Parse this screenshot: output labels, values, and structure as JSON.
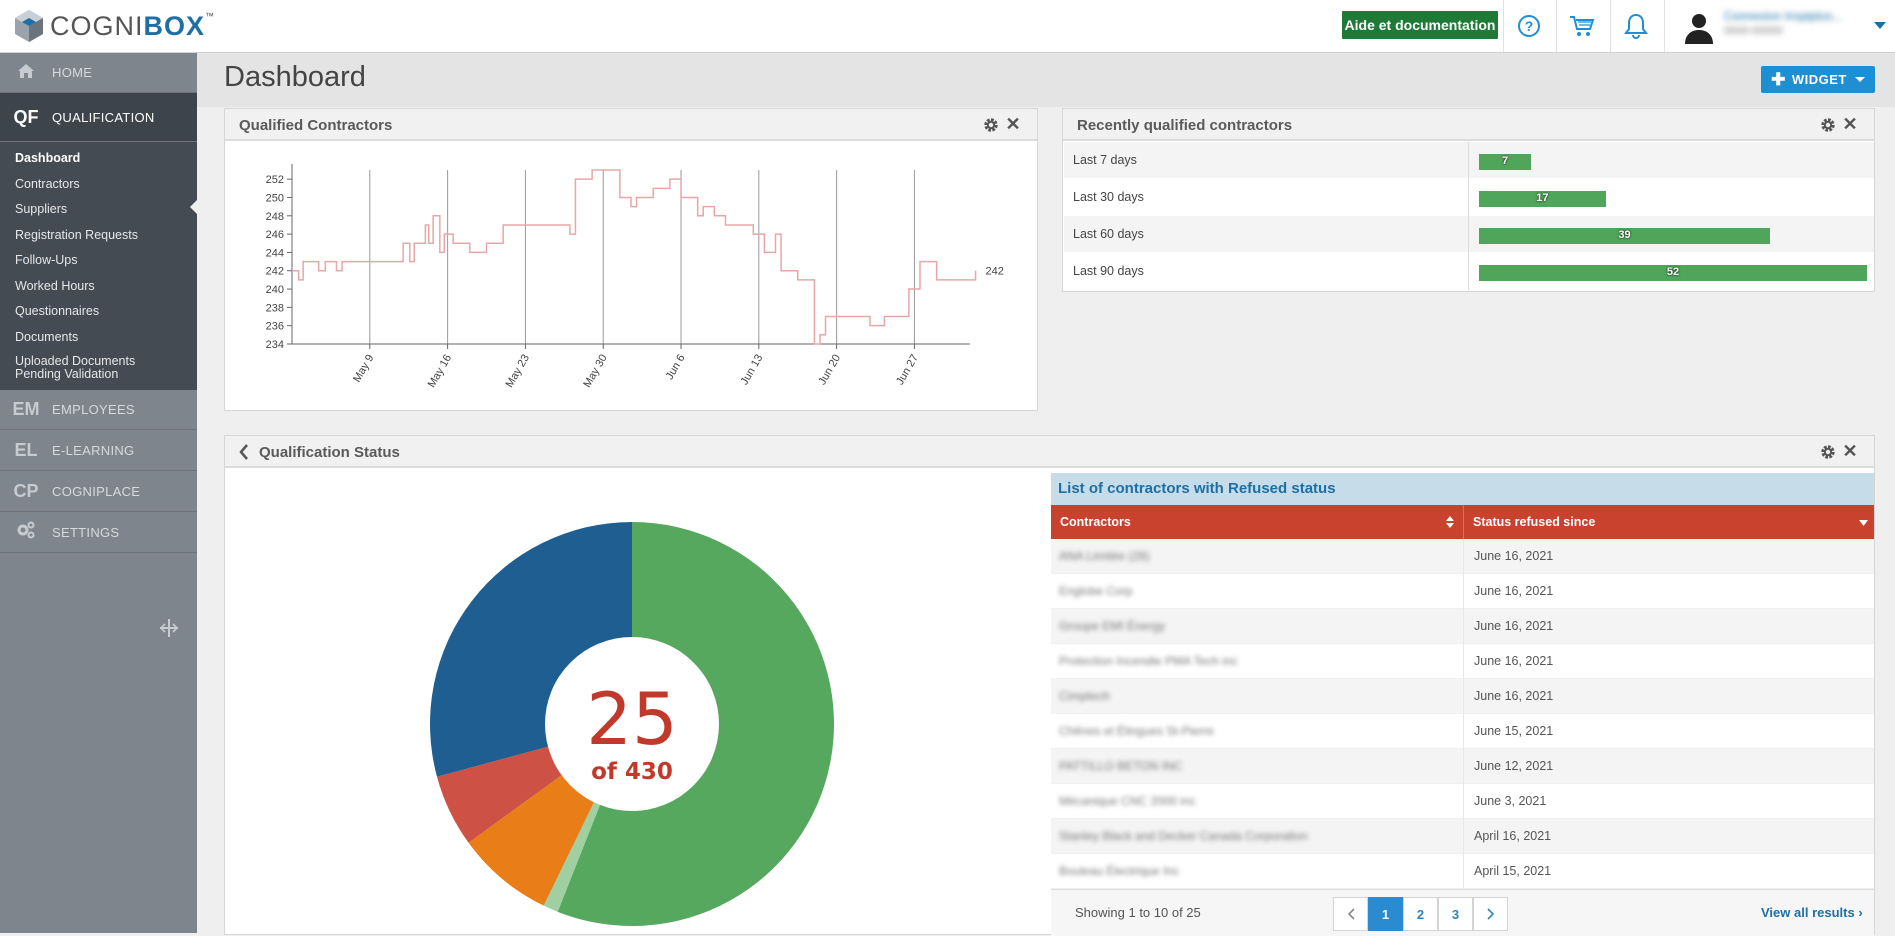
{
  "brand": {
    "logo_text_light": "COGNI",
    "logo_text_bold": "BOX",
    "logo_tm": "™"
  },
  "topbar": {
    "help_label": "Aide et documentation",
    "user_name": "Connexion Inspiplus...",
    "user_sub": "0000-00000"
  },
  "sidebar": {
    "main": [
      {
        "abbr": "",
        "label": "HOME"
      },
      {
        "abbr": "QF",
        "label": "QUALIFICATION"
      },
      {
        "abbr": "EM",
        "label": "EMPLOYEES"
      },
      {
        "abbr": "EL",
        "label": "E-LEARNING"
      },
      {
        "abbr": "CP",
        "label": "COGNIPLACE"
      },
      {
        "abbr": "",
        "label": "SETTINGS"
      }
    ],
    "sub": [
      "Dashboard",
      "Contractors",
      "Suppliers",
      "Registration Requests",
      "Follow-Ups",
      "Worked Hours",
      "Questionnaires",
      "Documents",
      "Uploaded Documents",
      "Pending Validation"
    ]
  },
  "page": {
    "title": "Dashboard",
    "widget_label": "WIDGET"
  },
  "qualified_contractors": {
    "title": "Qualified Contractors",
    "last_value_label": "242"
  },
  "recently_qualified": {
    "title": "Recently qualified contractors",
    "rows": [
      {
        "label": "Last 7 days",
        "value": 7
      },
      {
        "label": "Last 30 days",
        "value": 17
      },
      {
        "label": "Last 60 days",
        "value": 39
      },
      {
        "label": "Last 90 days",
        "value": 52
      }
    ]
  },
  "qualification_status": {
    "title": "Qualification Status",
    "center_big": "25",
    "center_small": "of 430",
    "list_title": "List of contractors with Refused status",
    "col_contractors": "Contractors",
    "col_since": "Status refused since",
    "rows": [
      {
        "name": "ANA Limitée (28)",
        "since": "June 16, 2021"
      },
      {
        "name": "Englobe Corp",
        "since": "June 16, 2021"
      },
      {
        "name": "Groupe EMI Énergy",
        "since": "June 16, 2021"
      },
      {
        "name": "Protection Incendie PMA Tech inc",
        "since": "June 16, 2021"
      },
      {
        "name": "Cimptech",
        "since": "June 16, 2021"
      },
      {
        "name": "Chênes et Élingues St-Pierre",
        "since": "June 15, 2021"
      },
      {
        "name": "PATTILLO BETON INC",
        "since": "June 12, 2021"
      },
      {
        "name": "Mécanique CNC 2000 inc",
        "since": "June 3, 2021"
      },
      {
        "name": "Stanley Black and Decker Canada Corporation",
        "since": "April 16, 2021"
      },
      {
        "name": "Bouleau Électrique Inc",
        "since": "April 15, 2021"
      }
    ],
    "showing": "Showing 1 to 10 of 25",
    "pages": [
      "1",
      "2",
      "3"
    ],
    "view_all": "View all results"
  },
  "chart_data": [
    {
      "type": "line",
      "title": "Qualified Contractors",
      "x_ticks": [
        "May 9",
        "May 16",
        "May 23",
        "May 30",
        "Jun 6",
        "Jun 13",
        "Jun 20",
        "Jun 27"
      ],
      "y_ticks": [
        234,
        236,
        238,
        240,
        242,
        244,
        246,
        248,
        250,
        252
      ],
      "ylim": [
        234,
        253
      ],
      "xlim_days": [
        0,
        61
      ],
      "series": [
        {
          "color": "#e8a7a7",
          "points": [
            [
              0,
              242
            ],
            [
              0.6,
              241
            ],
            [
              1,
              243
            ],
            [
              2,
              243
            ],
            [
              2.4,
              242
            ],
            [
              3,
              243
            ],
            [
              4,
              242
            ],
            [
              4.5,
              243
            ],
            [
              9.5,
              243
            ],
            [
              10,
              245
            ],
            [
              10.6,
              243
            ],
            [
              11,
              245
            ],
            [
              12,
              247
            ],
            [
              12.3,
              245
            ],
            [
              12.7,
              248
            ],
            [
              13.3,
              244
            ],
            [
              13.7,
              246
            ],
            [
              14.5,
              245
            ],
            [
              16,
              244
            ],
            [
              17.5,
              245
            ],
            [
              19,
              247
            ],
            [
              25,
              246
            ],
            [
              25.5,
              252
            ],
            [
              27,
              253
            ],
            [
              29.5,
              250
            ],
            [
              30.5,
              249
            ],
            [
              31,
              250
            ],
            [
              32,
              250
            ],
            [
              32.5,
              251
            ],
            [
              34,
              252
            ],
            [
              35,
              250
            ],
            [
              36.5,
              248
            ],
            [
              37,
              249
            ],
            [
              38,
              248
            ],
            [
              39,
              247
            ],
            [
              41.5,
              246
            ],
            [
              42.5,
              244
            ],
            [
              43.5,
              246
            ],
            [
              44,
              242
            ],
            [
              45.5,
              241
            ],
            [
              46.5,
              241
            ],
            [
              47,
              234
            ],
            [
              47.5,
              235
            ],
            [
              48,
              237
            ],
            [
              52,
              236
            ],
            [
              53,
              236
            ],
            [
              53.3,
              237
            ],
            [
              54,
              237
            ],
            [
              55,
              237
            ],
            [
              55.5,
              240
            ],
            [
              56.5,
              243
            ],
            [
              58,
              241
            ],
            [
              61,
              241
            ],
            [
              61.5,
              242
            ]
          ]
        }
      ]
    },
    {
      "type": "bar",
      "title": "Recently qualified contractors",
      "categories": [
        "Last 7 days",
        "Last 30 days",
        "Last 60 days",
        "Last 90 days"
      ],
      "values": [
        7,
        17,
        39,
        52
      ],
      "color": "#4fa55a"
    },
    {
      "type": "pie",
      "title": "Qualification Status",
      "slices": [
        {
          "value": 56,
          "color": "#55a85d"
        },
        {
          "value": 1.2,
          "color": "#a0d0a2"
        },
        {
          "value": 7.8,
          "color": "#e97d17"
        },
        {
          "value": 5.8,
          "color": "#cd5245"
        },
        {
          "value": 29.2,
          "color": "#1e5e90"
        }
      ],
      "center_value": "25",
      "center_label": "of 430"
    }
  ],
  "colors": {
    "accent": "#1e8fd0",
    "sidebar": "#7e858c",
    "refused_header": "#c8422e",
    "brand_green": "#1f7a38"
  }
}
